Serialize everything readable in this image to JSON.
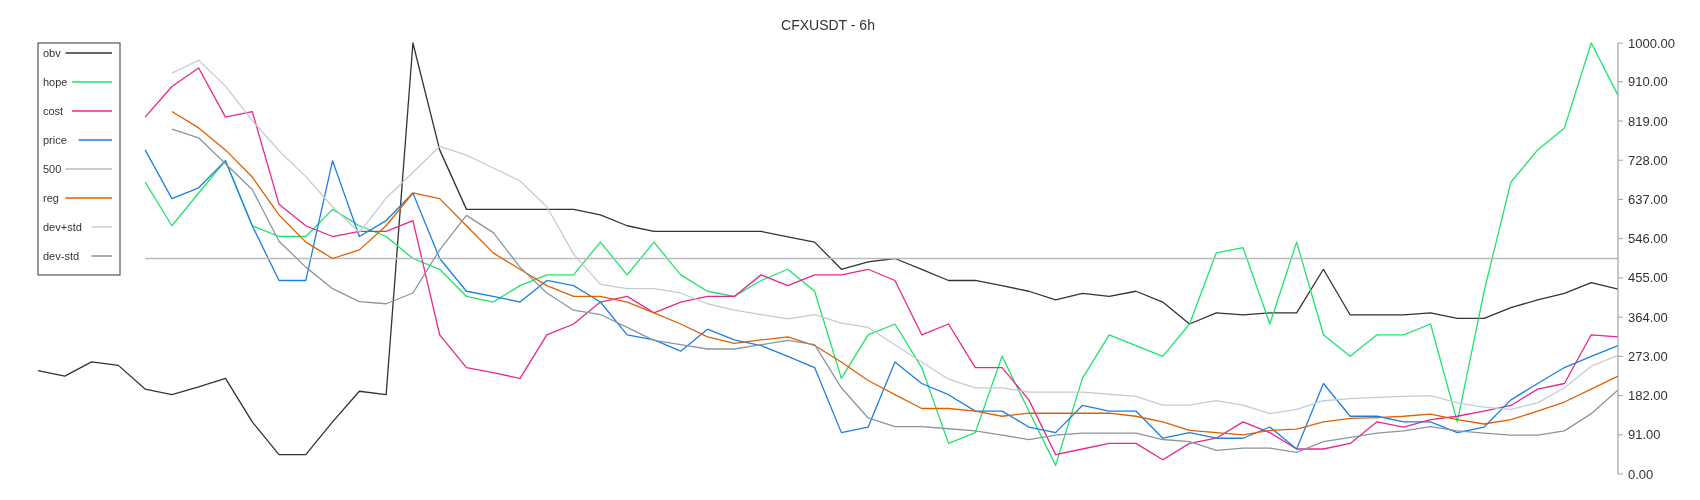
{
  "chart_data": {
    "type": "line",
    "title": "CFXUSDT - 6h",
    "categories": [
      null,
      null,
      null,
      null,
      null,
      null,
      null,
      null,
      null,
      null,
      null,
      null,
      null,
      null,
      null,
      null,
      null,
      null,
      null,
      null,
      null,
      null,
      null,
      null,
      null,
      null,
      null,
      null,
      null,
      null,
      null,
      null,
      null,
      null,
      null,
      null,
      null,
      null,
      null,
      null,
      null,
      null,
      null,
      null,
      null,
      null,
      null,
      null,
      null,
      null,
      null,
      null,
      null,
      null,
      null,
      null,
      null,
      null,
      null,
      null
    ],
    "series": [
      {
        "name": "obv",
        "color": "#333333",
        "values": [
          240,
          227,
          260,
          252,
          197,
          184,
          202,
          222,
          121,
          45,
          45,
          121,
          192,
          184,
          1000,
          752,
          614,
          614,
          614,
          614,
          614,
          601,
          576,
          563,
          563,
          563,
          563,
          563,
          550,
          538,
          475,
          492,
          500,
          475,
          449,
          449,
          437,
          424,
          404,
          419,
          412,
          424,
          399,
          348,
          374,
          369,
          374,
          374,
          475,
          369,
          369,
          369,
          374,
          361,
          361,
          386,
          404,
          419,
          444,
          429
        ]
      },
      {
        "name": "hope",
        "color": "#1ee36a",
        "values": [
          null,
          null,
          null,
          null,
          677,
          576,
          652,
          727,
          576,
          551,
          551,
          614,
          576,
          551,
          500,
          475,
          412,
          399,
          437,
          462,
          462,
          538,
          462,
          538,
          462,
          424,
          412,
          449,
          475,
          424,
          222,
          323,
          348,
          247,
          71,
          96,
          273,
          146,
          20,
          222,
          323,
          298,
          273,
          348,
          513,
          525,
          348,
          538,
          323,
          273,
          323,
          323,
          348,
          121,
          424,
          677,
          752,
          803,
          1000,
          879
        ]
      },
      {
        "name": "cost",
        "color": "#e8288a",
        "values": [
          null,
          null,
          null,
          null,
          828,
          899,
          942,
          828,
          841,
          626,
          576,
          551,
          563,
          563,
          588,
          323,
          247,
          235,
          222,
          323,
          348,
          399,
          412,
          374,
          399,
          412,
          412,
          462,
          437,
          462,
          462,
          475,
          449,
          323,
          348,
          247,
          247,
          172,
          45,
          58,
          71,
          71,
          33,
          71,
          83,
          121,
          96,
          58,
          58,
          71,
          121,
          109,
          126,
          134,
          146,
          159,
          197,
          210,
          323,
          318
        ]
      },
      {
        "name": "price",
        "color": "#1e7fe0",
        "values": [
          null,
          null,
          null,
          null,
          752,
          639,
          664,
          727,
          576,
          449,
          449,
          727,
          551,
          588,
          652,
          500,
          424,
          412,
          399,
          449,
          437,
          399,
          323,
          311,
          285,
          336,
          311,
          298,
          273,
          247,
          96,
          109,
          260,
          210,
          184,
          146,
          146,
          109,
          96,
          159,
          146,
          146,
          83,
          96,
          83,
          83,
          109,
          58,
          210,
          134,
          134,
          121,
          121,
          96,
          109,
          172,
          210,
          247,
          273,
          298
        ]
      },
      {
        "name": "500",
        "color": "#bbbbbb",
        "values": [
          null,
          null,
          null,
          null,
          500,
          500,
          500,
          500,
          500,
          500,
          500,
          500,
          500,
          500,
          500,
          500,
          500,
          500,
          500,
          500,
          500,
          500,
          500,
          500,
          500,
          500,
          500,
          500,
          500,
          500,
          500,
          500,
          500,
          500,
          500,
          500,
          500,
          500,
          500,
          500,
          500,
          500,
          500,
          500,
          500,
          500,
          500,
          500,
          500,
          500,
          500,
          500,
          500,
          500,
          500,
          500,
          500,
          500,
          500,
          500
        ]
      },
      {
        "name": "reg",
        "color": "#e06000",
        "values": [
          null,
          null,
          null,
          null,
          null,
          841,
          803,
          752,
          689,
          601,
          538,
          500,
          520,
          576,
          652,
          639,
          576,
          513,
          475,
          437,
          412,
          412,
          399,
          374,
          348,
          318,
          303,
          311,
          318,
          298,
          260,
          217,
          184,
          152,
          152,
          146,
          134,
          141,
          141,
          141,
          141,
          134,
          121,
          101,
          96,
          91,
          101,
          104,
          121,
          129,
          131,
          134,
          139,
          126,
          116,
          126,
          146,
          167,
          197,
          227
        ]
      },
      {
        "name": "dev+std",
        "color": "#c6cbd0",
        "values": [
          null,
          null,
          null,
          null,
          null,
          930,
          960,
          900,
          820,
          750,
          690,
          620,
          560,
          640,
          700,
          760,
          740,
          710,
          680,
          620,
          510,
          440,
          430,
          430,
          420,
          395,
          380,
          370,
          360,
          370,
          350,
          340,
          300,
          260,
          220,
          200,
          200,
          190,
          190,
          190,
          185,
          180,
          160,
          160,
          170,
          160,
          140,
          150,
          170,
          175,
          178,
          180,
          182,
          165,
          155,
          150,
          165,
          200,
          250,
          275
        ]
      },
      {
        "name": "dev-std",
        "color": "#8896a0",
        "values": [
          null,
          null,
          null,
          null,
          null,
          800,
          780,
          720,
          660,
          540,
          480,
          430,
          400,
          395,
          420,
          520,
          600,
          560,
          480,
          420,
          380,
          370,
          340,
          310,
          300,
          290,
          290,
          300,
          310,
          300,
          200,
          130,
          110,
          110,
          105,
          100,
          90,
          80,
          90,
          95,
          95,
          95,
          80,
          75,
          55,
          60,
          60,
          50,
          75,
          85,
          95,
          100,
          110,
          100,
          95,
          90,
          90,
          100,
          140,
          195
        ]
      }
    ],
    "ylim": [
      0,
      1000
    ],
    "yticks": [
      {
        "value": 0,
        "label": "0.00"
      },
      {
        "value": 91,
        "label": "91.00"
      },
      {
        "value": 182,
        "label": "182.00"
      },
      {
        "value": 273,
        "label": "273.00"
      },
      {
        "value": 364,
        "label": "364.00"
      },
      {
        "value": 455,
        "label": "455.00"
      },
      {
        "value": 546,
        "label": "546.00"
      },
      {
        "value": 637,
        "label": "637.00"
      },
      {
        "value": 728,
        "label": "728.00"
      },
      {
        "value": 819,
        "label": "819.00"
      },
      {
        "value": 910,
        "label": "910.00"
      },
      {
        "value": 1000,
        "label": "1000.00"
      }
    ],
    "legend": "top left",
    "grid": false
  }
}
